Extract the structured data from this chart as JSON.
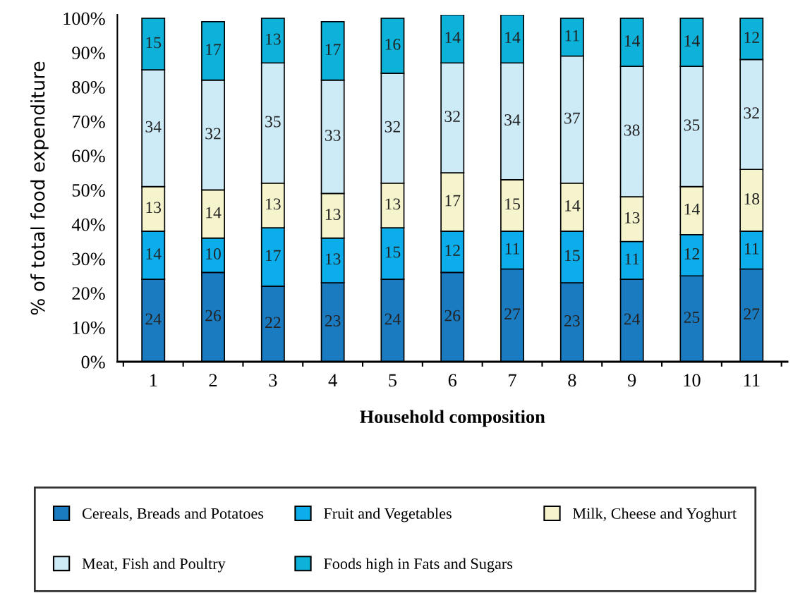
{
  "chart_data": {
    "type": "bar",
    "stacked": true,
    "xlabel": "Household composition",
    "ylabel": "% of total food expenditure",
    "categories": [
      "1",
      "2",
      "3",
      "4",
      "5",
      "6",
      "7",
      "8",
      "9",
      "10",
      "11"
    ],
    "series": [
      {
        "name": "Cereals, Breads and Potatoes",
        "color": "#1b7bc1",
        "values": [
          24,
          26,
          22,
          23,
          24,
          26,
          27,
          23,
          24,
          25,
          27
        ]
      },
      {
        "name": "Fruit and Vegetables",
        "color": "#0badeb",
        "values": [
          14,
          10,
          17,
          13,
          15,
          12,
          11,
          15,
          11,
          12,
          11
        ]
      },
      {
        "name": "Milk, Cheese and Yoghurt",
        "color": "#f6f4cc",
        "values": [
          13,
          14,
          13,
          13,
          13,
          17,
          15,
          14,
          13,
          14,
          18
        ]
      },
      {
        "name": "Meat, Fish and Poultry",
        "color": "#cdeaf7",
        "values": [
          34,
          32,
          35,
          33,
          32,
          32,
          34,
          37,
          38,
          35,
          32
        ]
      },
      {
        "name": "Foods high in Fats and Sugars",
        "color": "#0cb2d9",
        "values": [
          15,
          17,
          13,
          17,
          16,
          14,
          14,
          11,
          14,
          14,
          12
        ]
      }
    ],
    "ylim": [
      0,
      101
    ],
    "yticks": [
      {
        "value": 0,
        "label": "0%"
      },
      {
        "value": 10,
        "label": "10%"
      },
      {
        "value": 20,
        "label": "20%"
      },
      {
        "value": 30,
        "label": "30%"
      },
      {
        "value": 40,
        "label": "40%"
      },
      {
        "value": 50,
        "label": "50%"
      },
      {
        "value": 60,
        "label": "60%"
      },
      {
        "value": 70,
        "label": "70%"
      },
      {
        "value": 80,
        "label": "80%"
      },
      {
        "value": 90,
        "label": "90%"
      },
      {
        "value": 100,
        "label": "100%"
      }
    ],
    "data_labels": true,
    "grid": false,
    "legend": "bottom"
  }
}
